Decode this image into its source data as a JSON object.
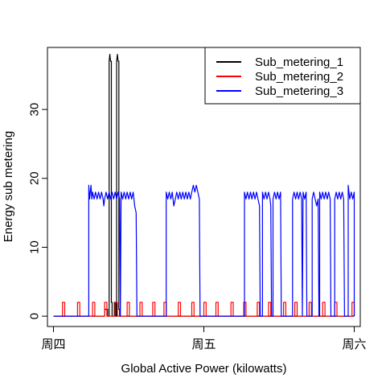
{
  "chart_data": {
    "type": "line",
    "title": "",
    "xlabel": "Global Active Power (kilowatts)",
    "ylabel": "Energy sub metering",
    "xlim": [
      -0.04,
      2.04
    ],
    "ylim": [
      -1.5,
      39
    ],
    "x_ticks": [
      {
        "value": 0,
        "label": "周四"
      },
      {
        "value": 1,
        "label": "周五"
      },
      {
        "value": 2,
        "label": "周六"
      }
    ],
    "y_ticks": [
      0,
      10,
      20,
      30
    ],
    "legend": {
      "position": "top-right",
      "entries": [
        {
          "name": "Sub_metering_1",
          "color": "#000000"
        },
        {
          "name": "Sub_metering_2",
          "color": "#ff0000"
        },
        {
          "name": "Sub_metering_3",
          "color": "#0000ff"
        }
      ]
    },
    "series": [
      {
        "name": "Sub_metering_1",
        "color": "#000000",
        "points": [
          [
            0,
            0
          ],
          [
            0.34,
            0
          ],
          [
            0.34,
            1
          ],
          [
            0.36,
            1
          ],
          [
            0.36,
            0
          ],
          [
            0.37,
            0
          ],
          [
            0.37,
            37
          ],
          [
            0.375,
            38
          ],
          [
            0.38,
            37
          ],
          [
            0.385,
            37
          ],
          [
            0.385,
            2
          ],
          [
            0.39,
            2
          ],
          [
            0.39,
            0
          ],
          [
            0.405,
            0
          ],
          [
            0.405,
            2
          ],
          [
            0.415,
            2
          ],
          [
            0.415,
            0
          ],
          [
            0.42,
            0
          ],
          [
            0.42,
            37
          ],
          [
            0.425,
            38
          ],
          [
            0.43,
            37
          ],
          [
            0.435,
            37
          ],
          [
            0.435,
            1
          ],
          [
            0.44,
            1
          ],
          [
            0.44,
            0
          ],
          [
            2,
            0
          ]
        ]
      },
      {
        "name": "Sub_metering_2",
        "color": "#ff0000",
        "points": [
          [
            0,
            0
          ],
          [
            0.06,
            0
          ],
          [
            0.06,
            2
          ],
          [
            0.075,
            2
          ],
          [
            0.075,
            0
          ],
          [
            0.16,
            0
          ],
          [
            0.16,
            2
          ],
          [
            0.175,
            2
          ],
          [
            0.175,
            0
          ],
          [
            0.26,
            0
          ],
          [
            0.26,
            2
          ],
          [
            0.275,
            2
          ],
          [
            0.275,
            0
          ],
          [
            0.34,
            0
          ],
          [
            0.34,
            2
          ],
          [
            0.355,
            2
          ],
          [
            0.355,
            0
          ],
          [
            0.41,
            0
          ],
          [
            0.41,
            2
          ],
          [
            0.425,
            2
          ],
          [
            0.425,
            0
          ],
          [
            0.49,
            0
          ],
          [
            0.49,
            2
          ],
          [
            0.505,
            2
          ],
          [
            0.505,
            0
          ],
          [
            0.575,
            0
          ],
          [
            0.575,
            2
          ],
          [
            0.59,
            2
          ],
          [
            0.59,
            0
          ],
          [
            0.66,
            0
          ],
          [
            0.66,
            2
          ],
          [
            0.675,
            2
          ],
          [
            0.675,
            0
          ],
          [
            0.735,
            0
          ],
          [
            0.735,
            2
          ],
          [
            0.75,
            2
          ],
          [
            0.75,
            0
          ],
          [
            0.83,
            0
          ],
          [
            0.83,
            2
          ],
          [
            0.845,
            2
          ],
          [
            0.845,
            0
          ],
          [
            0.92,
            0
          ],
          [
            0.92,
            2
          ],
          [
            0.935,
            2
          ],
          [
            0.935,
            0
          ],
          [
            1.0,
            0
          ],
          [
            1.0,
            2
          ],
          [
            1.015,
            2
          ],
          [
            1.015,
            0
          ],
          [
            1.08,
            0
          ],
          [
            1.08,
            2
          ],
          [
            1.095,
            2
          ],
          [
            1.095,
            0
          ],
          [
            1.18,
            0
          ],
          [
            1.18,
            2
          ],
          [
            1.195,
            2
          ],
          [
            1.195,
            0
          ],
          [
            1.265,
            0
          ],
          [
            1.265,
            2
          ],
          [
            1.28,
            2
          ],
          [
            1.28,
            0
          ],
          [
            1.355,
            0
          ],
          [
            1.355,
            2
          ],
          [
            1.37,
            2
          ],
          [
            1.37,
            0
          ],
          [
            1.43,
            0
          ],
          [
            1.43,
            2
          ],
          [
            1.445,
            2
          ],
          [
            1.445,
            0
          ],
          [
            1.53,
            0
          ],
          [
            1.53,
            2
          ],
          [
            1.545,
            2
          ],
          [
            1.545,
            0
          ],
          [
            1.605,
            0
          ],
          [
            1.605,
            2
          ],
          [
            1.62,
            2
          ],
          [
            1.62,
            0
          ],
          [
            1.7,
            0
          ],
          [
            1.7,
            2
          ],
          [
            1.715,
            2
          ],
          [
            1.715,
            0
          ],
          [
            1.79,
            0
          ],
          [
            1.79,
            2
          ],
          [
            1.805,
            2
          ],
          [
            1.805,
            0
          ],
          [
            1.87,
            0
          ],
          [
            1.87,
            2
          ],
          [
            1.885,
            2
          ],
          [
            1.885,
            0
          ],
          [
            1.985,
            0
          ],
          [
            1.985,
            2
          ],
          [
            2.0,
            2
          ],
          [
            2.0,
            0
          ]
        ]
      },
      {
        "name": "Sub_metering_3",
        "color": "#0000ff",
        "points": [
          [
            0,
            0
          ],
          [
            0.235,
            0
          ],
          [
            0.235,
            19
          ],
          [
            0.24,
            17
          ],
          [
            0.25,
            19
          ],
          [
            0.255,
            17
          ],
          [
            0.26,
            18
          ],
          [
            0.27,
            17
          ],
          [
            0.28,
            18
          ],
          [
            0.29,
            17
          ],
          [
            0.3,
            18
          ],
          [
            0.31,
            17
          ],
          [
            0.32,
            18
          ],
          [
            0.33,
            17
          ],
          [
            0.335,
            16
          ],
          [
            0.34,
            17
          ],
          [
            0.35,
            18
          ],
          [
            0.36,
            17
          ],
          [
            0.37,
            18
          ],
          [
            0.38,
            17
          ],
          [
            0.39,
            18
          ],
          [
            0.4,
            17
          ],
          [
            0.41,
            18
          ],
          [
            0.42,
            17
          ],
          [
            0.43,
            18
          ],
          [
            0.44,
            17
          ],
          [
            0.445,
            0
          ],
          [
            0.45,
            18
          ],
          [
            0.46,
            17
          ],
          [
            0.47,
            18
          ],
          [
            0.48,
            17
          ],
          [
            0.49,
            18
          ],
          [
            0.5,
            17
          ],
          [
            0.51,
            18
          ],
          [
            0.52,
            17
          ],
          [
            0.53,
            18
          ],
          [
            0.54,
            16
          ],
          [
            0.55,
            15
          ],
          [
            0.555,
            0
          ],
          [
            0.75,
            0
          ],
          [
            0.75,
            18
          ],
          [
            0.76,
            17
          ],
          [
            0.77,
            18
          ],
          [
            0.78,
            17
          ],
          [
            0.79,
            18
          ],
          [
            0.8,
            16
          ],
          [
            0.81,
            17
          ],
          [
            0.82,
            18
          ],
          [
            0.83,
            17
          ],
          [
            0.84,
            18
          ],
          [
            0.85,
            17
          ],
          [
            0.86,
            18
          ],
          [
            0.87,
            17
          ],
          [
            0.88,
            18
          ],
          [
            0.89,
            17
          ],
          [
            0.9,
            18
          ],
          [
            0.91,
            17
          ],
          [
            0.92,
            18
          ],
          [
            0.93,
            19
          ],
          [
            0.94,
            18
          ],
          [
            0.95,
            19
          ],
          [
            0.96,
            18
          ],
          [
            0.97,
            17
          ],
          [
            0.975,
            0
          ],
          [
            1.27,
            0
          ],
          [
            1.27,
            18
          ],
          [
            1.28,
            17
          ],
          [
            1.29,
            18
          ],
          [
            1.3,
            17
          ],
          [
            1.31,
            18
          ],
          [
            1.32,
            17
          ],
          [
            1.33,
            18
          ],
          [
            1.34,
            17
          ],
          [
            1.35,
            18
          ],
          [
            1.36,
            17
          ],
          [
            1.37,
            16
          ],
          [
            1.375,
            0
          ],
          [
            1.39,
            0
          ],
          [
            1.39,
            18
          ],
          [
            1.4,
            17
          ],
          [
            1.41,
            18
          ],
          [
            1.42,
            17
          ],
          [
            1.43,
            18
          ],
          [
            1.44,
            17
          ],
          [
            1.445,
            16
          ],
          [
            1.45,
            0
          ],
          [
            1.46,
            0
          ],
          [
            1.46,
            17
          ],
          [
            1.47,
            18
          ],
          [
            1.48,
            17
          ],
          [
            1.49,
            18
          ],
          [
            1.5,
            17
          ],
          [
            1.51,
            18
          ],
          [
            1.515,
            0
          ],
          [
            1.59,
            0
          ],
          [
            1.59,
            17
          ],
          [
            1.6,
            18
          ],
          [
            1.61,
            17
          ],
          [
            1.62,
            18
          ],
          [
            1.63,
            17
          ],
          [
            1.64,
            18
          ],
          [
            1.65,
            17
          ],
          [
            1.655,
            0
          ],
          [
            1.66,
            18
          ],
          [
            1.67,
            17
          ],
          [
            1.68,
            18
          ],
          [
            1.685,
            0
          ],
          [
            1.72,
            0
          ],
          [
            1.72,
            17
          ],
          [
            1.73,
            18
          ],
          [
            1.74,
            17
          ],
          [
            1.75,
            16
          ],
          [
            1.76,
            17
          ],
          [
            1.765,
            0
          ],
          [
            1.77,
            0
          ],
          [
            1.77,
            18
          ],
          [
            1.78,
            17
          ],
          [
            1.79,
            18
          ],
          [
            1.8,
            17
          ],
          [
            1.81,
            18
          ],
          [
            1.82,
            17
          ],
          [
            1.83,
            18
          ],
          [
            1.84,
            17
          ],
          [
            1.845,
            0
          ],
          [
            1.87,
            0
          ],
          [
            1.87,
            17
          ],
          [
            1.88,
            18
          ],
          [
            1.89,
            17
          ],
          [
            1.9,
            18
          ],
          [
            1.91,
            17
          ],
          [
            1.92,
            18
          ],
          [
            1.93,
            17
          ],
          [
            1.935,
            0
          ],
          [
            1.96,
            0
          ],
          [
            1.96,
            19
          ],
          [
            1.97,
            17
          ],
          [
            1.98,
            18
          ],
          [
            1.99,
            17
          ],
          [
            2.0,
            18
          ],
          [
            2.0,
            0
          ]
        ]
      }
    ]
  }
}
